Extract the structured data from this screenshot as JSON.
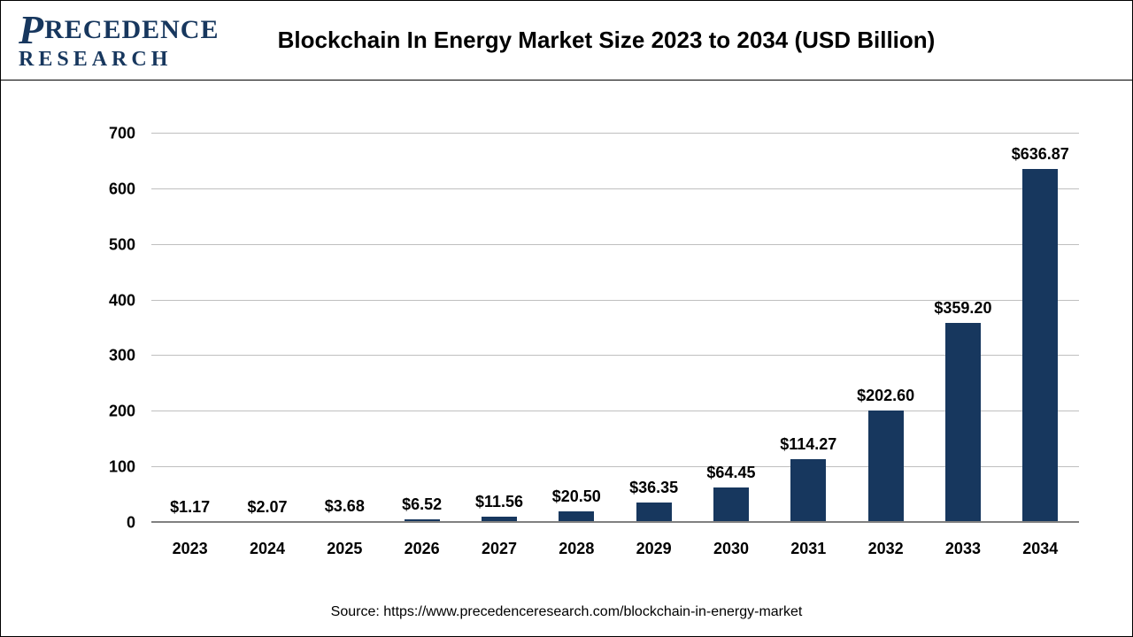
{
  "logo": {
    "line1_tail": "RECEDENCE",
    "line2": "RESEARCH",
    "color": "#17375e"
  },
  "chart": {
    "type": "bar",
    "title": "Blockchain In Energy Market Size 2023 to 2034 (USD Billion)",
    "title_fontsize": 26,
    "categories": [
      "2023",
      "2024",
      "2025",
      "2026",
      "2027",
      "2028",
      "2029",
      "2030",
      "2031",
      "2032",
      "2033",
      "2034"
    ],
    "values": [
      1.17,
      2.07,
      3.68,
      6.52,
      11.56,
      20.5,
      36.35,
      64.45,
      114.27,
      202.6,
      359.2,
      636.87
    ],
    "value_labels": [
      "$1.17",
      "$2.07",
      "$3.68",
      "$6.52",
      "$11.56",
      "$20.50",
      "$36.35",
      "$64.45",
      "$114.27",
      "$202.60",
      "$359.20",
      "$636.87"
    ],
    "bar_color": "#17375e",
    "ylim": [
      0,
      700
    ],
    "ytick_step": 100,
    "yticks": [
      0,
      100,
      200,
      300,
      400,
      500,
      600,
      700
    ],
    "grid_color": "#bfbfbf",
    "baseline_color": "#808080",
    "background_color": "#ffffff",
    "label_fontsize": 18,
    "category_fontsize": 18,
    "bar_width_ratio": 0.46
  },
  "source": {
    "text": "Source: https://www.precedenceresearch.com/blockchain-in-energy-market",
    "fontsize": 16
  }
}
